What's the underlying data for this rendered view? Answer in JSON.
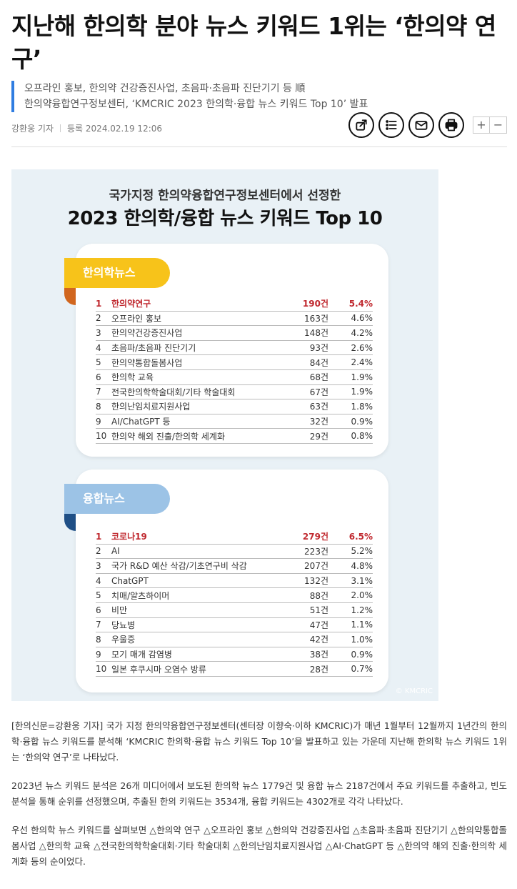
{
  "article": {
    "headline": "지난해 한의학 분야 뉴스 키워드 1위는 ‘한의약 연구’",
    "subtitles": [
      "오프라인 홍보, 한의약 건강증진사업, 초음파·초음파 진단기기 등 順",
      "한의약융합연구정보센터, ‘KMCRIC 2023 한의학·융합 뉴스 키워드 Top 10’ 발표"
    ],
    "author": "강환웅 기자",
    "date_label": "등록 2024.02.19 12:06"
  },
  "toolbar": {
    "icons": [
      "share-icon",
      "list-icon",
      "mail-icon",
      "print-icon"
    ],
    "zoom_in": "+",
    "zoom_out": "−"
  },
  "figure": {
    "subtitle": "국가지정 한의약융합연구정보센터에서 선정한",
    "title": "2023 한의학/융합 뉴스 키워드 Top 10",
    "credit": "© KMCRIC",
    "tag_colors": {
      "hanui": "#f7c31a",
      "yunghap": "#9cc3e6"
    },
    "top_color": "#c0292f",
    "sections": [
      {
        "label": "한의학뉴스",
        "rows": [
          {
            "rank": "1",
            "keyword": "한의약연구",
            "count": "190건",
            "pct": "5.4%"
          },
          {
            "rank": "2",
            "keyword": "오프라인 홍보",
            "count": "163건",
            "pct": "4.6%"
          },
          {
            "rank": "3",
            "keyword": "한의약건강증진사업",
            "count": "148건",
            "pct": "4.2%"
          },
          {
            "rank": "4",
            "keyword": "초음파/초음파 진단기기",
            "count": "93건",
            "pct": "2.6%"
          },
          {
            "rank": "5",
            "keyword": "한의약통합돌봄사업",
            "count": "84건",
            "pct": "2.4%"
          },
          {
            "rank": "6",
            "keyword": "한의학 교육",
            "count": "68건",
            "pct": "1.9%"
          },
          {
            "rank": "7",
            "keyword": "전국한의학학술대회/기타 학술대회",
            "count": "67건",
            "pct": "1.9%"
          },
          {
            "rank": "8",
            "keyword": "한의난임치료지원사업",
            "count": "63건",
            "pct": "1.8%"
          },
          {
            "rank": "9",
            "keyword": "AI/ChatGPT 등",
            "count": "32건",
            "pct": "0.9%"
          },
          {
            "rank": "10",
            "keyword": "한의약 해외 진출/한의학 세계화",
            "count": "29건",
            "pct": "0.8%"
          }
        ]
      },
      {
        "label": "융합뉴스",
        "rows": [
          {
            "rank": "1",
            "keyword": "코로나19",
            "count": "279건",
            "pct": "6.5%"
          },
          {
            "rank": "2",
            "keyword": "AI",
            "count": "223건",
            "pct": "5.2%"
          },
          {
            "rank": "3",
            "keyword": "국가 R&D 예산 삭감/기초연구비 삭감",
            "count": "207건",
            "pct": "4.8%"
          },
          {
            "rank": "4",
            "keyword": "ChatGPT",
            "count": "132건",
            "pct": "3.1%"
          },
          {
            "rank": "5",
            "keyword": "치매/알츠하이머",
            "count": "88건",
            "pct": "2.0%"
          },
          {
            "rank": "6",
            "keyword": "비만",
            "count": "51건",
            "pct": "1.2%"
          },
          {
            "rank": "7",
            "keyword": "당뇨병",
            "count": "47건",
            "pct": "1.1%"
          },
          {
            "rank": "8",
            "keyword": "우울증",
            "count": "42건",
            "pct": "1.0%"
          },
          {
            "rank": "9",
            "keyword": "모기 매개 감염병",
            "count": "38건",
            "pct": "0.9%"
          },
          {
            "rank": "10",
            "keyword": "일본 후쿠시마 오염수 방류",
            "count": "28건",
            "pct": "0.7%"
          }
        ]
      }
    ]
  },
  "body": {
    "paragraphs": [
      "[한의신문=강환웅 기자] 국가 지정 한의약융합연구정보센터(센터장 이향숙·이하 KMCRIC)가 매년 1월부터 12월까지 1년간의 한의학·융합 뉴스 키워드를 분석해 ‘KMCRIC 한의학·융합 뉴스 키워드 Top 10’을 발표하고 있는 가운데 지난해 한의학 뉴스 키워드 1위는 ‘한의약 연구’로 나타났다.",
      "2023년 뉴스 키워드 분석은 26개 미디어에서 보도된 한의학 뉴스 1779건 및 융합 뉴스 2187건에서 주요 키워드를 추출하고, 빈도 분석을 통해 순위를 선정했으며, 추출된 한의 키워드는 3534개, 융합 키워드는 4302개로 각각 나타났다.",
      "우선 한의학 뉴스 키워드를 살펴보면 △한의약 연구 △오프라인 홍보 △한의약 건강증진사업 △초음파·초음파 진단기기 △한의약통합돌봄사업 △한의학 교육 △전국한의학학술대회·기타 학술대회 △한의난임치료지원사업 △AI·ChatGPT 등 △한의약 해외 진출·한의학 세계화 등의 순이었다."
    ]
  }
}
